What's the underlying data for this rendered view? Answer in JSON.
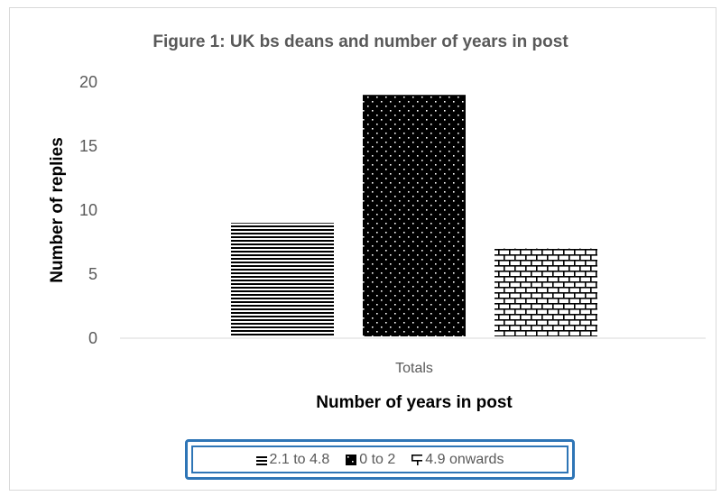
{
  "chart_data": {
    "type": "bar",
    "title": "Figure 1:  UK bs deans and number of years in post",
    "xlabel": "Number of years in post",
    "ylabel": "Number of replies",
    "categories": [
      "Totals"
    ],
    "series": [
      {
        "name": "2.1 to 4.8",
        "values": [
          9
        ],
        "pattern": "horizontal-lines"
      },
      {
        "name": "0 to 2",
        "values": [
          19
        ],
        "pattern": "dots-on-black"
      },
      {
        "name": "4.9 onwards",
        "values": [
          7
        ],
        "pattern": "bricks"
      }
    ],
    "ylim": [
      0,
      20
    ],
    "yticks": [
      "0",
      "5",
      "10",
      "15",
      "20"
    ],
    "grid": false,
    "legend_position": "bottom"
  },
  "colors": {
    "bar_ink": "#000000",
    "axis_text": "#595959",
    "legend_border": "#2e75b6"
  }
}
